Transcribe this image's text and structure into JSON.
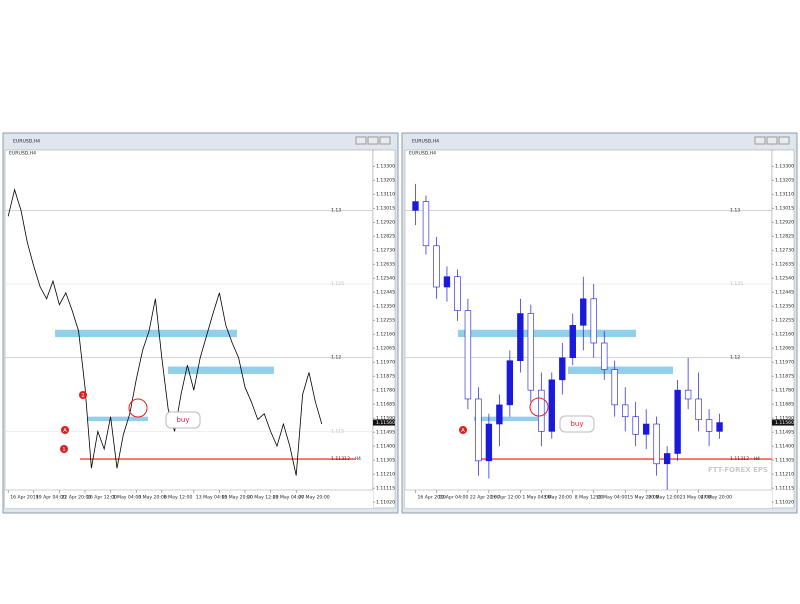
{
  "chart_data": [
    {
      "type": "line",
      "title": "EURUSD,H4",
      "color": "#000000",
      "values": [
        1.1296,
        1.1314,
        1.13,
        1.1278,
        1.1262,
        1.1248,
        1.124,
        1.1252,
        1.1236,
        1.1244,
        1.1232,
        1.1218,
        1.118,
        1.1125,
        1.115,
        1.1138,
        1.116,
        1.1125,
        1.1148,
        1.1162,
        1.1185,
        1.1205,
        1.1218,
        1.124,
        1.12,
        1.1165,
        1.115,
        1.1175,
        1.1195,
        1.1178,
        1.12,
        1.1215,
        1.123,
        1.1244,
        1.1222,
        1.121,
        1.12,
        1.118,
        1.117,
        1.1158,
        1.1162,
        1.115,
        1.114,
        1.1155,
        1.114,
        1.112,
        1.1175,
        1.119,
        1.117,
        1.1155
      ],
      "xlim": [
        -0.5,
        57
      ],
      "ylim": [
        1.1098,
        1.1341
      ],
      "xticks": [
        {
          "value": 0,
          "label": "16 Apr 2019"
        },
        {
          "value": 4,
          "label": "19 Apr 04:00"
        },
        {
          "value": 8,
          "label": "22 Apr 20:00"
        },
        {
          "value": 12,
          "label": "26 Apr 12:00"
        },
        {
          "value": 16,
          "label": "1 May 04:00"
        },
        {
          "value": 20,
          "label": "3 May 20:00"
        },
        {
          "value": 24,
          "label": "8 May 12:00"
        },
        {
          "value": 29,
          "label": "13 May 04:00"
        },
        {
          "value": 33,
          "label": "15 May 20:00"
        },
        {
          "value": 37,
          "label": "20 May 12:00"
        },
        {
          "value": 41,
          "label": "23 May 04:00"
        },
        {
          "value": 45,
          "label": "27 May 20:00"
        }
      ],
      "yticks": [
        {
          "value": 1.133,
          "label": "1.13300"
        },
        1.13205,
        {
          "value": 1.1311,
          "label": "1.13110"
        },
        1.13015,
        {
          "value": 1.1292,
          "label": "1.12920"
        },
        1.12825,
        {
          "value": 1.1273,
          "label": "1.12730"
        },
        1.12635,
        {
          "value": 1.1254,
          "label": "1.12540"
        },
        1.12445,
        {
          "value": 1.1235,
          "label": "1.12350"
        },
        1.12255,
        {
          "value": 1.1216,
          "label": "1.12160"
        },
        1.12065,
        {
          "value": 1.1197,
          "label": "1.11970"
        },
        1.11875,
        {
          "value": 1.1178,
          "label": "1.11780"
        },
        1.11685,
        {
          "value": 1.1159,
          "label": "1.11590"
        },
        1.11495,
        {
          "value": 1.114,
          "label": "1.11400"
        },
        1.11305,
        {
          "value": 1.1121,
          "label": "1.11210"
        },
        1.11115,
        {
          "value": 1.1102,
          "label": "1.11020"
        }
      ],
      "levels": [
        {
          "value": 1.13,
          "color": "#bbbbbb"
        },
        {
          "value": 1.125,
          "color": "#e6e6e6"
        },
        {
          "value": 1.12,
          "color": "#bbbbbb"
        },
        {
          "value": 1.115,
          "color": "#e6e6e6"
        },
        {
          "value": 1.11312,
          "label": "1.11312 - H4",
          "color": "#ff5a4a"
        }
      ],
      "current_price": {
        "value": 1.1156,
        "label": "1.11560"
      },
      "zones": [
        [
          1.1219,
          1.1214
        ],
        [
          1.1194,
          1.1189
        ],
        [
          1.116,
          1.1157
        ]
      ],
      "zone_color": "#7cc8e8",
      "annotations": [
        "1",
        "2",
        "A",
        "buy"
      ]
    },
    {
      "type": "candlestick",
      "title": "EURUSD,H4",
      "color": "#1a1adb",
      "open": [
        1.13,
        1.1306,
        1.1276,
        1.1248,
        1.1255,
        1.1232,
        1.1172,
        1.113,
        1.1155,
        1.1168,
        1.1198,
        1.123,
        1.1178,
        1.115,
        1.1185,
        1.12,
        1.1222,
        1.124,
        1.121,
        1.1192,
        1.1168,
        1.116,
        1.1148,
        1.1155,
        1.1128,
        1.1135,
        1.1178,
        1.1172,
        1.1158,
        1.115
      ],
      "high": [
        1.1318,
        1.131,
        1.1282,
        1.1262,
        1.126,
        1.124,
        1.118,
        1.1162,
        1.1175,
        1.1205,
        1.124,
        1.1236,
        1.119,
        1.119,
        1.121,
        1.123,
        1.1255,
        1.125,
        1.1218,
        1.1198,
        1.118,
        1.117,
        1.1165,
        1.116,
        1.114,
        1.1185,
        1.12,
        1.119,
        1.1165,
        1.1162
      ],
      "low": [
        1.129,
        1.127,
        1.124,
        1.1238,
        1.1225,
        1.1165,
        1.112,
        1.1118,
        1.114,
        1.116,
        1.119,
        1.117,
        1.114,
        1.1145,
        1.1175,
        1.1195,
        1.1205,
        1.12,
        1.1185,
        1.116,
        1.115,
        1.114,
        1.1138,
        1.112,
        1.11,
        1.113,
        1.1165,
        1.115,
        1.114,
        1.1145
      ],
      "close": [
        1.1306,
        1.1276,
        1.1248,
        1.1255,
        1.1232,
        1.1172,
        1.113,
        1.1155,
        1.1168,
        1.1198,
        1.123,
        1.1178,
        1.115,
        1.1185,
        1.12,
        1.1222,
        1.124,
        1.121,
        1.1192,
        1.1168,
        1.116,
        1.1148,
        1.1155,
        1.1128,
        1.1135,
        1.1178,
        1.1172,
        1.1158,
        1.115,
        1.1156
      ],
      "xlim": [
        -1,
        34
      ],
      "ylim": [
        1.1098,
        1.1341
      ],
      "xticks": [
        {
          "value": 0,
          "label": "16 Apr 2019"
        },
        {
          "value": 2,
          "label": "19 Apr 04:00"
        },
        {
          "value": 5,
          "label": "22 Apr 20:00"
        },
        {
          "value": 7,
          "label": "26 Apr 12:00"
        },
        {
          "value": 10,
          "label": "1 May 04:00"
        },
        {
          "value": 12,
          "label": "3 May 20:00"
        },
        {
          "value": 15,
          "label": "8 May 12:00"
        },
        {
          "value": 17,
          "label": "13 May 04:00"
        },
        {
          "value": 20,
          "label": "15 May 20:00"
        },
        {
          "value": 22,
          "label": "20 May 12:00"
        },
        {
          "value": 25,
          "label": "23 May 04:00"
        },
        {
          "value": 27,
          "label": "27 May 20:00"
        }
      ],
      "yticks": [
        {
          "value": 1.133,
          "label": "1.13300"
        },
        1.13205,
        {
          "value": 1.1311,
          "label": "1.13110"
        },
        1.13015,
        {
          "value": 1.1292,
          "label": "1.12920"
        },
        1.12825,
        {
          "value": 1.1273,
          "label": "1.12730"
        },
        1.12635,
        {
          "value": 1.1254,
          "label": "1.12540"
        },
        1.12445,
        {
          "value": 1.1235,
          "label": "1.12350"
        },
        1.12255,
        {
          "value": 1.1216,
          "label": "1.12160"
        },
        1.12065,
        {
          "value": 1.1197,
          "label": "1.11970"
        },
        1.11875,
        {
          "value": 1.1178,
          "label": "1.11780"
        },
        1.11685,
        {
          "value": 1.1159,
          "label": "1.11590"
        },
        1.11495,
        {
          "value": 1.114,
          "label": "1.11400"
        },
        1.11305,
        {
          "value": 1.1121,
          "label": "1.11210"
        },
        1.11115,
        {
          "value": 1.1102,
          "label": "1.11020"
        }
      ],
      "levels": [
        {
          "value": 1.13,
          "color": "#bbbbbb"
        },
        {
          "value": 1.125,
          "color": "#e6e6e6"
        },
        {
          "value": 1.12,
          "color": "#bbbbbb"
        },
        {
          "value": 1.11312,
          "label": "1.11312 - H4",
          "color": "#ff5a4a"
        }
      ],
      "current_price": {
        "value": 1.1156,
        "label": "1.11560"
      },
      "zones": [
        [
          1.1219,
          1.1214
        ],
        [
          1.1194,
          1.1189
        ],
        [
          1.116,
          1.1157
        ]
      ],
      "zone_color": "#7cc8e8",
      "annotations": [
        "A",
        "buy"
      ],
      "watermark": "FTT-FOREX EPS"
    }
  ]
}
